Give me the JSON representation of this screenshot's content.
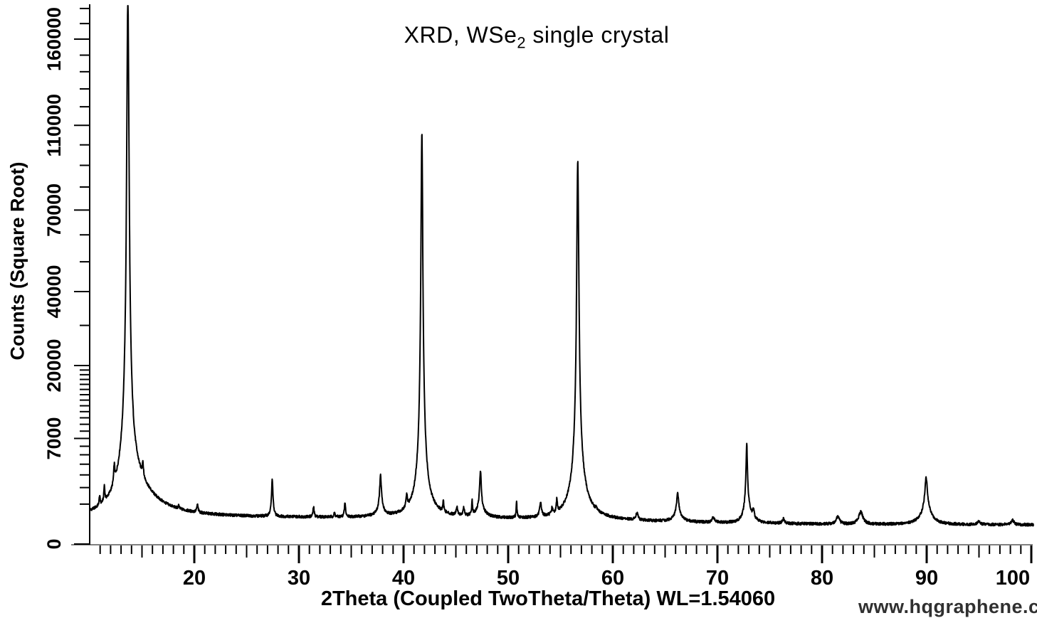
{
  "chart_data": {
    "type": "line",
    "title": {
      "prefix": "XRD, WSe",
      "subscript": "2",
      "suffix": " single crystal"
    },
    "xlabel": "2Theta (Coupled TwoTheta/Theta) WL=1.54060",
    "ylabel": "Counts (Square Root)",
    "watermark": "www.hqgraphene.com",
    "legend": "none",
    "grid": "off",
    "x_axis": {
      "min": 10,
      "max": 100.2,
      "minor_step_deg": 1,
      "medium_step_deg": 5,
      "major_ticks": [
        {
          "value": 20,
          "label": "20"
        },
        {
          "value": 30,
          "label": "30"
        },
        {
          "value": 40,
          "label": "40"
        },
        {
          "value": 50,
          "label": "50"
        },
        {
          "value": 60,
          "label": "60"
        },
        {
          "value": 70,
          "label": "70"
        },
        {
          "value": 80,
          "label": "80"
        },
        {
          "value": 90,
          "label": "90"
        },
        {
          "value": 100,
          "label": "100"
        }
      ]
    },
    "y_axis": {
      "scale": "sqrt",
      "min": 0,
      "max": 182000,
      "major_ticks": [
        {
          "value": 0,
          "label": "0"
        },
        {
          "value": 7000,
          "label": "7000"
        },
        {
          "value": 20000,
          "label": "20000"
        },
        {
          "value": 40000,
          "label": "40000"
        },
        {
          "value": 70000,
          "label": "70000"
        },
        {
          "value": 110000,
          "label": "110000"
        },
        {
          "value": 160000,
          "label": "160000"
        }
      ],
      "minor_ticks": [
        1000,
        2000,
        3000,
        4000,
        5000,
        6000,
        8000,
        9000,
        10000,
        11000,
        12000,
        13000,
        14000,
        15000,
        16000,
        17000,
        18000,
        19000,
        30000,
        50000,
        60000,
        80000,
        90000,
        100000,
        120000,
        130000,
        140000,
        150000,
        170000,
        180000
      ]
    },
    "baseline": {
      "base": 230,
      "step_amp": 200,
      "step_center": 60,
      "step_width": 8
    },
    "peaks_2theta_counts_hwhm": [
      [
        10.95,
        520,
        0.05
      ],
      [
        11.4,
        1000,
        0.05
      ],
      [
        12.35,
        1600,
        0.06
      ],
      [
        13.65,
        185000,
        0.11
      ],
      [
        15.08,
        1300,
        0.06
      ],
      [
        18.5,
        150,
        0.05
      ],
      [
        20.3,
        340,
        0.07
      ],
      [
        27.45,
        2150,
        0.07
      ],
      [
        31.4,
        400,
        0.06
      ],
      [
        33.4,
        150,
        0.06
      ],
      [
        34.4,
        600,
        0.06
      ],
      [
        37.8,
        2200,
        0.09
      ],
      [
        40.3,
        700,
        0.07
      ],
      [
        41.75,
        104500,
        0.09
      ],
      [
        43.8,
        500,
        0.06
      ],
      [
        45.1,
        330,
        0.09
      ],
      [
        45.75,
        320,
        0.07
      ],
      [
        46.55,
        650,
        0.045
      ],
      [
        47.35,
        2500,
        0.08
      ],
      [
        50.8,
        650,
        0.045
      ],
      [
        53.1,
        560,
        0.1
      ],
      [
        54.2,
        280,
        0.06
      ],
      [
        54.65,
        680,
        0.05
      ],
      [
        56.65,
        90000,
        0.1
      ],
      [
        58.4,
        120,
        0.05
      ],
      [
        62.3,
        240,
        0.12
      ],
      [
        66.2,
        1100,
        0.1
      ],
      [
        69.6,
        170,
        0.12
      ],
      [
        72.8,
        5400,
        0.07
      ],
      [
        73.45,
        350,
        0.08
      ],
      [
        76.3,
        130,
        0.12
      ],
      [
        81.5,
        210,
        0.18
      ],
      [
        83.7,
        400,
        0.22
      ],
      [
        89.95,
        2000,
        0.13
      ],
      [
        95.0,
        90,
        0.15
      ],
      [
        98.2,
        130,
        0.15
      ]
    ],
    "broad_components_2theta_counts_hwhmL_hwhmR": [
      [
        13.65,
        2800,
        0.8,
        1.6
      ],
      [
        37.8,
        250,
        0.4,
        0.4
      ],
      [
        41.75,
        1200,
        0.35,
        0.45
      ],
      [
        47.35,
        400,
        0.4,
        0.4
      ],
      [
        56.65,
        1800,
        0.45,
        0.55
      ],
      [
        66.2,
        250,
        0.4,
        0.4
      ],
      [
        72.8,
        700,
        0.25,
        0.35
      ],
      [
        89.95,
        500,
        0.5,
        0.5
      ]
    ],
    "noise_sigma_factor": 2.2
  },
  "colors": {
    "trace": "#000000",
    "x_axis_line": "#808080",
    "y_axis_line": "#000000",
    "tick": "#000000",
    "text": "#000000",
    "watermark": "#303030",
    "background": "#ffffff"
  }
}
